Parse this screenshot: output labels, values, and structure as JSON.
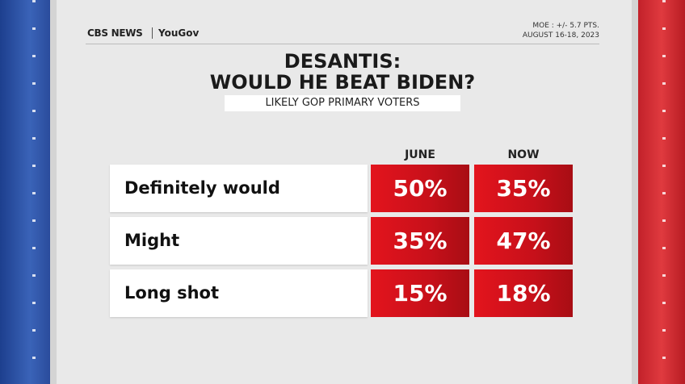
{
  "header": {
    "brand": "CBS NEWS",
    "partner": "YouGov",
    "moe": "MOE : +/- 5.7 PTS.",
    "dates": "AUGUST 16-18, 2023"
  },
  "title": {
    "line1": "DESANTIS:",
    "line2": "WOULD HE BEAT BIDEN?",
    "subtitle": "LIKELY GOP PRIMARY VOTERS"
  },
  "table": {
    "columns": [
      "JUNE",
      "NOW"
    ],
    "rows": [
      [
        "Definitely would",
        "50%",
        "35%"
      ],
      [
        "Might",
        "35%",
        "47%"
      ],
      [
        "Long shot",
        "15%",
        "18%"
      ]
    ]
  }
}
